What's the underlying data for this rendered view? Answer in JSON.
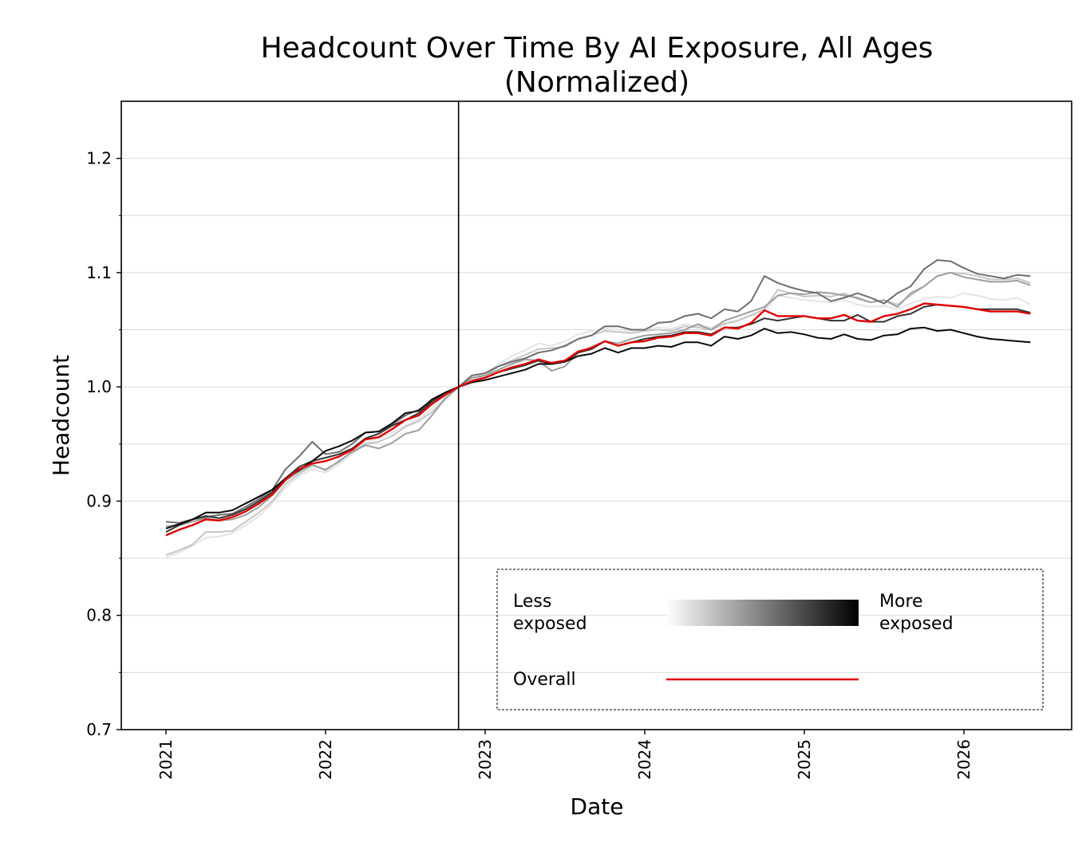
{
  "chart_data": {
    "type": "line",
    "title": "Headcount Over Time By AI Exposure, All Ages",
    "subtitle": "(Normalized)",
    "xlabel": "Date",
    "ylabel": "Headcount",
    "xlim": [
      "2020-09",
      "2026-10"
    ],
    "ylim": [
      0.7,
      1.25
    ],
    "yticks": [
      0.7,
      0.8,
      0.9,
      1.0,
      1.1,
      1.2
    ],
    "ytick_labels": [
      "0.7",
      "0.8",
      "0.9",
      "1.0",
      "1.1",
      "1.2"
    ],
    "xticks": [
      "2021",
      "2022",
      "2023",
      "2024",
      "2025",
      "2026"
    ],
    "grid": "horizontal",
    "reference_line_date": "2022-11",
    "legend": {
      "placement": "lower-right",
      "less_label": "Less\nexposed",
      "more_label": "More\nexposed",
      "overall_label": "Overall"
    },
    "dates": [
      "2021-01",
      "2021-02",
      "2021-03",
      "2021-04",
      "2021-05",
      "2021-06",
      "2021-07",
      "2021-08",
      "2021-09",
      "2021-10",
      "2021-11",
      "2021-12",
      "2022-01",
      "2022-02",
      "2022-03",
      "2022-04",
      "2022-05",
      "2022-06",
      "2022-07",
      "2022-08",
      "2022-09",
      "2022-10",
      "2022-11",
      "2022-12",
      "2023-01",
      "2023-02",
      "2023-03",
      "2023-04",
      "2023-05",
      "2023-06",
      "2023-07",
      "2023-08",
      "2023-09",
      "2023-10",
      "2023-11",
      "2023-12",
      "2024-01",
      "2024-02",
      "2024-03",
      "2024-04",
      "2024-05",
      "2024-06",
      "2024-07",
      "2024-08",
      "2024-09",
      "2024-10",
      "2024-11",
      "2024-12",
      "2025-01",
      "2025-02",
      "2025-03",
      "2025-04",
      "2025-05",
      "2025-06",
      "2025-07",
      "2025-08",
      "2025-09",
      "2025-10",
      "2025-11",
      "2025-12",
      "2026-01",
      "2026-02",
      "2026-03",
      "2026-04",
      "2026-05",
      "2026-06"
    ],
    "series": [
      {
        "color": "#e4e4e4",
        "values": [
          0.851,
          0.855,
          0.861,
          0.868,
          0.869,
          0.872,
          0.879,
          0.887,
          0.898,
          0.912,
          0.922,
          0.928,
          0.925,
          0.932,
          0.941,
          0.951,
          0.955,
          0.96,
          0.966,
          0.972,
          0.981,
          0.99,
          1.0,
          1.007,
          1.012,
          1.02,
          1.027,
          1.032,
          1.038,
          1.036,
          1.04,
          1.046,
          1.049,
          1.051,
          1.05,
          1.049,
          1.05,
          1.052,
          1.051,
          1.055,
          1.053,
          1.052,
          1.056,
          1.058,
          1.062,
          1.066,
          1.08,
          1.078,
          1.076,
          1.075,
          1.074,
          1.076,
          1.072,
          1.07,
          1.071,
          1.068,
          1.073,
          1.077,
          1.079,
          1.078,
          1.082,
          1.08,
          1.077,
          1.076,
          1.078,
          1.072
        ]
      },
      {
        "color": "#c6c6c6",
        "values": [
          0.853,
          0.857,
          0.862,
          0.873,
          0.873,
          0.874,
          0.882,
          0.89,
          0.9,
          0.915,
          0.924,
          0.931,
          0.928,
          0.934,
          0.944,
          0.95,
          0.952,
          0.957,
          0.965,
          0.97,
          0.978,
          0.989,
          1.0,
          1.006,
          1.01,
          1.018,
          1.023,
          1.028,
          1.033,
          1.034,
          1.035,
          1.042,
          1.045,
          1.049,
          1.048,
          1.047,
          1.049,
          1.05,
          1.049,
          1.053,
          1.052,
          1.05,
          1.055,
          1.058,
          1.063,
          1.068,
          1.085,
          1.082,
          1.079,
          1.08,
          1.079,
          1.082,
          1.077,
          1.074,
          1.076,
          1.072,
          1.08,
          1.088,
          1.097,
          1.1,
          1.099,
          1.097,
          1.094,
          1.094,
          1.095,
          1.091
        ]
      },
      {
        "color": "#9e9e9e",
        "values": [
          0.878,
          0.879,
          0.882,
          0.885,
          0.883,
          0.884,
          0.888,
          0.895,
          0.905,
          0.918,
          0.926,
          0.932,
          0.927,
          0.935,
          0.943,
          0.949,
          0.946,
          0.951,
          0.959,
          0.962,
          0.975,
          0.99,
          1.0,
          1.008,
          1.01,
          1.015,
          1.02,
          1.024,
          1.023,
          1.014,
          1.018,
          1.03,
          1.035,
          1.04,
          1.038,
          1.042,
          1.045,
          1.046,
          1.047,
          1.05,
          1.055,
          1.05,
          1.058,
          1.062,
          1.066,
          1.07,
          1.08,
          1.082,
          1.081,
          1.083,
          1.082,
          1.08,
          1.078,
          1.074,
          1.076,
          1.07,
          1.082,
          1.088,
          1.097,
          1.1,
          1.096,
          1.094,
          1.092,
          1.092,
          1.093,
          1.089
        ]
      },
      {
        "color": "#6e6e6e",
        "values": [
          0.882,
          0.881,
          0.884,
          0.886,
          0.888,
          0.889,
          0.895,
          0.902,
          0.91,
          0.928,
          0.939,
          0.952,
          0.941,
          0.943,
          0.95,
          0.96,
          0.961,
          0.967,
          0.975,
          0.98,
          0.988,
          0.993,
          1.0,
          1.01,
          1.012,
          1.018,
          1.022,
          1.025,
          1.03,
          1.032,
          1.036,
          1.042,
          1.045,
          1.053,
          1.053,
          1.05,
          1.05,
          1.056,
          1.057,
          1.062,
          1.064,
          1.06,
          1.068,
          1.066,
          1.075,
          1.097,
          1.091,
          1.087,
          1.084,
          1.082,
          1.075,
          1.078,
          1.082,
          1.078,
          1.073,
          1.082,
          1.088,
          1.103,
          1.111,
          1.11,
          1.104,
          1.099,
          1.097,
          1.095,
          1.098,
          1.097
        ]
      },
      {
        "color": "#333333",
        "values": [
          0.873,
          0.879,
          0.884,
          0.887,
          0.885,
          0.888,
          0.893,
          0.9,
          0.908,
          0.92,
          0.93,
          0.935,
          0.938,
          0.941,
          0.946,
          0.955,
          0.959,
          0.966,
          0.971,
          0.977,
          0.987,
          0.995,
          1.0,
          1.005,
          1.008,
          1.013,
          1.016,
          1.019,
          1.023,
          1.02,
          1.022,
          1.03,
          1.033,
          1.04,
          1.036,
          1.039,
          1.042,
          1.044,
          1.045,
          1.048,
          1.048,
          1.046,
          1.052,
          1.052,
          1.055,
          1.06,
          1.058,
          1.06,
          1.062,
          1.06,
          1.058,
          1.058,
          1.063,
          1.057,
          1.057,
          1.062,
          1.064,
          1.07,
          1.072,
          1.071,
          1.07,
          1.068,
          1.068,
          1.068,
          1.068,
          1.065
        ]
      },
      {
        "color": "#0a0a0a",
        "values": [
          0.876,
          0.88,
          0.884,
          0.89,
          0.89,
          0.892,
          0.898,
          0.904,
          0.91,
          0.92,
          0.927,
          0.935,
          0.944,
          0.948,
          0.953,
          0.96,
          0.961,
          0.968,
          0.977,
          0.979,
          0.989,
          0.995,
          1.0,
          1.004,
          1.006,
          1.009,
          1.012,
          1.015,
          1.02,
          1.02,
          1.022,
          1.027,
          1.029,
          1.034,
          1.03,
          1.034,
          1.034,
          1.036,
          1.035,
          1.039,
          1.039,
          1.036,
          1.044,
          1.042,
          1.045,
          1.051,
          1.047,
          1.048,
          1.046,
          1.043,
          1.042,
          1.046,
          1.042,
          1.041,
          1.045,
          1.046,
          1.051,
          1.052,
          1.049,
          1.05,
          1.047,
          1.044,
          1.042,
          1.041,
          1.04,
          1.039
        ]
      },
      {
        "name": "Overall",
        "color": "#e00000",
        "values": [
          0.87,
          0.875,
          0.879,
          0.884,
          0.883,
          0.886,
          0.891,
          0.898,
          0.906,
          0.919,
          0.928,
          0.933,
          0.935,
          0.939,
          0.945,
          0.954,
          0.956,
          0.963,
          0.971,
          0.975,
          0.985,
          0.993,
          1.0,
          1.005,
          1.008,
          1.013,
          1.017,
          1.02,
          1.024,
          1.021,
          1.023,
          1.031,
          1.034,
          1.04,
          1.036,
          1.039,
          1.04,
          1.043,
          1.044,
          1.047,
          1.047,
          1.045,
          1.052,
          1.051,
          1.056,
          1.067,
          1.062,
          1.062,
          1.062,
          1.06,
          1.06,
          1.063,
          1.058,
          1.057,
          1.062,
          1.064,
          1.068,
          1.073,
          1.072,
          1.071,
          1.07,
          1.068,
          1.066,
          1.066,
          1.066,
          1.064
        ]
      }
    ]
  }
}
